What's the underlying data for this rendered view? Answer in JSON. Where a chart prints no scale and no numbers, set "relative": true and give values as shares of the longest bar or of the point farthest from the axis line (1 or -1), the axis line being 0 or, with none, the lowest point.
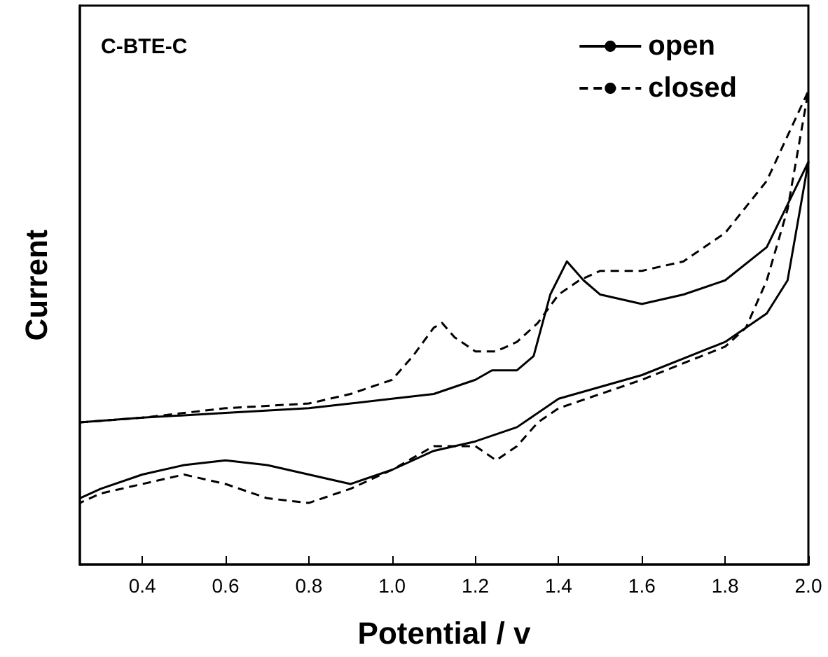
{
  "chart_data": {
    "type": "line",
    "relative": true,
    "xlabel": "Potential / v",
    "ylabel": "Current",
    "annotations": [
      "C-BTE-C"
    ],
    "xlim": [
      0.25,
      2.0
    ],
    "xticks": [
      0.4,
      0.6,
      0.8,
      {
        "value": 1,
        "label": "1.0"
      },
      1.2,
      1.4,
      1.6,
      1.8,
      {
        "value": 2,
        "label": "2.0"
      }
    ],
    "legend": "top right",
    "marker": "none",
    "grid": false,
    "series": [
      {
        "name": "open",
        "color": "#000000",
        "line_style": "solid",
        "x": [
          0.25,
          0.4,
          0.6,
          0.8,
          1.0,
          1.1,
          1.2,
          1.24,
          1.3,
          1.34,
          1.38,
          1.42,
          1.46,
          1.5,
          1.6,
          1.7,
          1.8,
          1.9,
          2.0,
          1.95,
          1.9,
          1.8,
          1.6,
          1.4,
          1.3,
          1.2,
          1.1,
          1.0,
          0.9,
          0.8,
          0.7,
          0.6,
          0.5,
          0.4,
          0.3,
          0.25
        ],
        "values": [
          0.3,
          0.31,
          0.32,
          0.33,
          0.35,
          0.36,
          0.39,
          0.41,
          0.41,
          0.44,
          0.57,
          0.64,
          0.6,
          0.57,
          0.55,
          0.57,
          0.6,
          0.67,
          0.85,
          0.6,
          0.53,
          0.47,
          0.4,
          0.35,
          0.29,
          0.26,
          0.24,
          0.2,
          0.17,
          0.19,
          0.21,
          0.22,
          0.21,
          0.19,
          0.16,
          0.14
        ]
      },
      {
        "name": "closed",
        "color": "#000000",
        "line_style": "dashed",
        "x": [
          0.25,
          0.4,
          0.6,
          0.8,
          0.9,
          1.0,
          1.05,
          1.1,
          1.12,
          1.15,
          1.2,
          1.25,
          1.3,
          1.35,
          1.4,
          1.45,
          1.5,
          1.6,
          1.7,
          1.8,
          1.9,
          2.0,
          1.95,
          1.9,
          1.85,
          1.8,
          1.6,
          1.4,
          1.35,
          1.3,
          1.25,
          1.2,
          1.1,
          1.0,
          0.9,
          0.8,
          0.7,
          0.6,
          0.5,
          0.4,
          0.3,
          0.25
        ],
        "values": [
          0.3,
          0.31,
          0.33,
          0.34,
          0.36,
          0.39,
          0.44,
          0.5,
          0.51,
          0.48,
          0.45,
          0.45,
          0.47,
          0.51,
          0.57,
          0.6,
          0.62,
          0.62,
          0.64,
          0.7,
          0.81,
          1.0,
          0.75,
          0.6,
          0.5,
          0.46,
          0.39,
          0.33,
          0.3,
          0.25,
          0.22,
          0.25,
          0.25,
          0.2,
          0.16,
          0.13,
          0.14,
          0.17,
          0.19,
          0.17,
          0.15,
          0.13
        ]
      }
    ]
  }
}
